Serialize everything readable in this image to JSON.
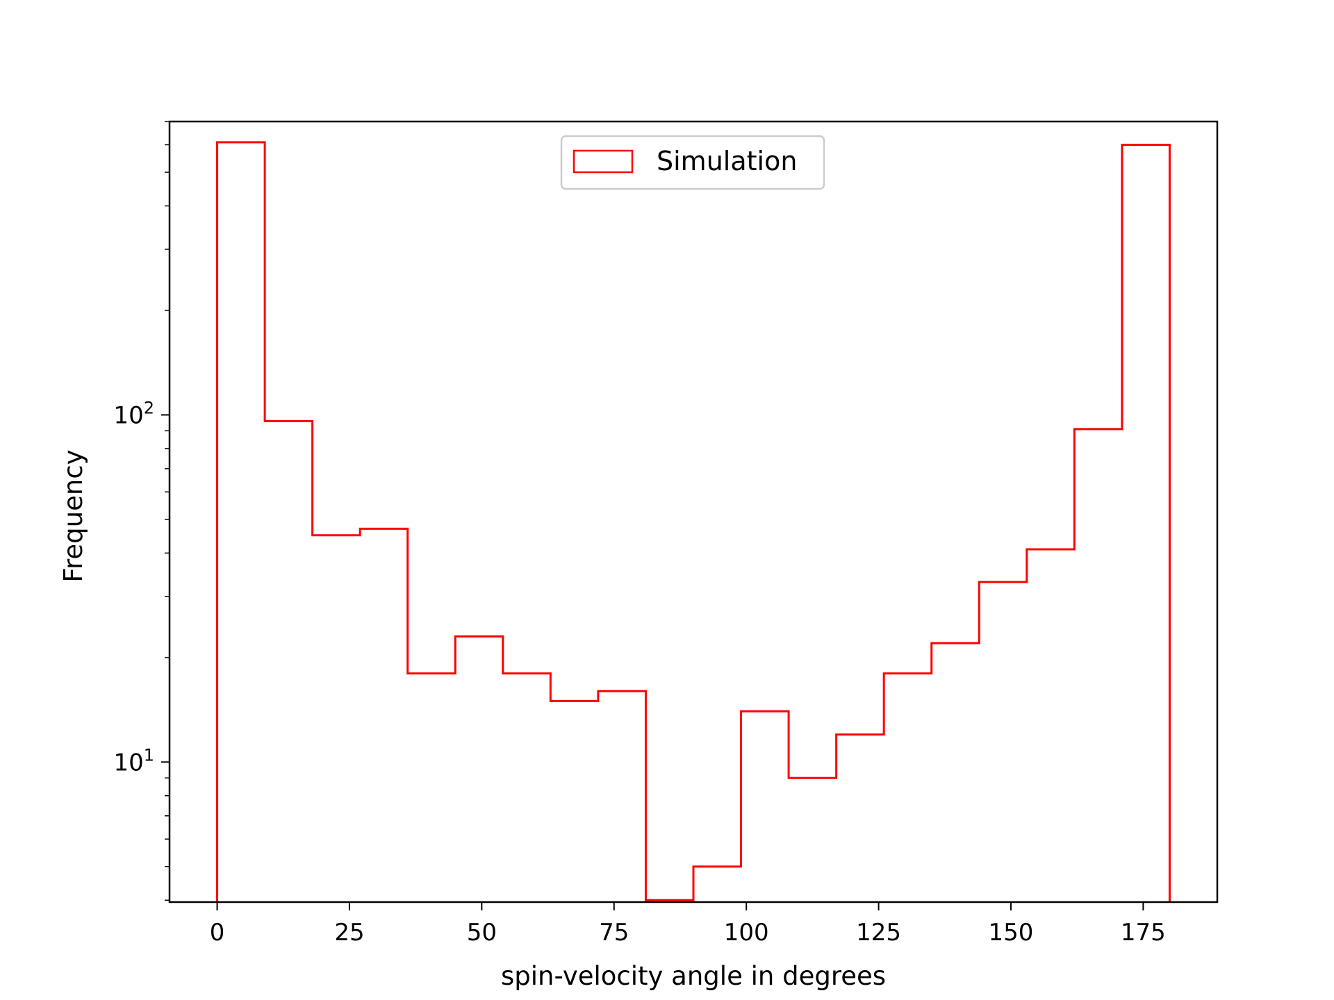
{
  "chart_data": {
    "type": "histogram",
    "xlabel": "spin-velocity angle in degrees",
    "ylabel": "Frequency",
    "y_scale": "log",
    "xlim": [
      -9,
      189
    ],
    "ylim": [
      3.95,
      700
    ],
    "x_ticks": [
      {
        "value": 0,
        "label": "0"
      },
      {
        "value": 25,
        "label": "25"
      },
      {
        "value": 50,
        "label": "50"
      },
      {
        "value": 75,
        "label": "75"
      },
      {
        "value": 100,
        "label": "100"
      },
      {
        "value": 125,
        "label": "125"
      },
      {
        "value": 150,
        "label": "150"
      },
      {
        "value": 175,
        "label": "175"
      }
    ],
    "y_ticks": [
      {
        "value": 10,
        "base": "10",
        "exp": "1"
      },
      {
        "value": 100,
        "base": "10",
        "exp": "2"
      }
    ],
    "bin_edges": [
      0,
      9,
      18,
      27,
      36,
      45,
      54,
      63,
      72,
      81,
      90,
      99,
      108,
      117,
      126,
      135,
      144,
      153,
      162,
      171,
      180
    ],
    "series": [
      {
        "name": "Simulation",
        "color": "#ff0000",
        "histtype": "step",
        "values": [
          610,
          96,
          45,
          47,
          18,
          23,
          18,
          15,
          16,
          4,
          5,
          14,
          9,
          12,
          18,
          22,
          33,
          41,
          91,
          600
        ]
      }
    ],
    "legend": {
      "position": "upper-center"
    },
    "grid": false
  }
}
